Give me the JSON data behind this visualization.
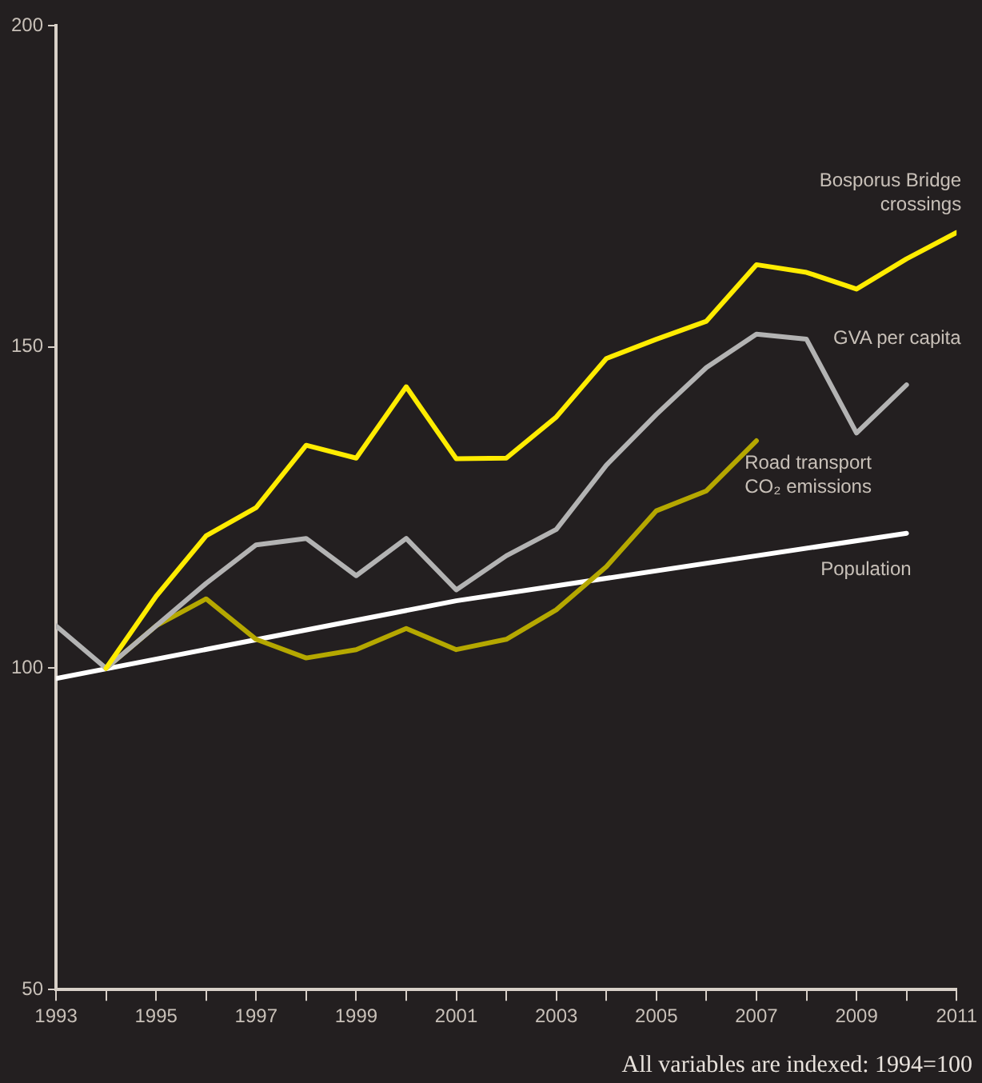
{
  "chart_data": {
    "type": "line",
    "series": [
      {
        "name": "Bosporus Bridge crossings",
        "color": "#ffec00",
        "x": [
          1994,
          1995,
          1996,
          1997,
          1998,
          1999,
          2000,
          2001,
          2002,
          2003,
          2004,
          2005,
          2006,
          2007,
          2008,
          2009,
          2010,
          2011
        ],
        "values": [
          100,
          111.2,
          120.6,
          125,
          134.7,
          132.7,
          143.8,
          132.6,
          132.7,
          139.1,
          148.2,
          151.2,
          154,
          162.8,
          161.6,
          159,
          163.7,
          167.8
        ]
      },
      {
        "name": "GVA per capita",
        "color": "#b3b3b3",
        "x": [
          1993,
          1994,
          1995,
          1996,
          1997,
          1998,
          1999,
          2000,
          2001,
          2002,
          2003,
          2004,
          2005,
          2006,
          2007,
          2008,
          2009,
          2010
        ],
        "values": [
          106.6,
          100,
          106.6,
          113.2,
          119.2,
          120.2,
          114.4,
          120.2,
          112.2,
          117.5,
          121.6,
          131.6,
          139.5,
          146.8,
          152,
          151.2,
          136.6,
          144.1
        ]
      },
      {
        "name": "Road transport CO₂ emissions",
        "color": "#b5a800",
        "x": [
          1994,
          1995,
          1996,
          1997,
          1998,
          1999,
          2000,
          2001,
          2002,
          2003,
          2004,
          2005,
          2006,
          2007
        ],
        "values": [
          100,
          106.6,
          110.8,
          104.5,
          101.6,
          102.9,
          106.2,
          102.9,
          104.5,
          109.1,
          115.8,
          124.5,
          127.6,
          135.4
        ]
      },
      {
        "name": "Population",
        "color": "#ffffff",
        "x": [
          1993,
          2001,
          2010
        ],
        "values": [
          98.4,
          110.5,
          121
        ]
      }
    ],
    "xlim": [
      1993,
      2011
    ],
    "xticks": [
      1993,
      {
        "value": 1994,
        "label": null
      },
      1995,
      {
        "value": 1996,
        "label": null
      },
      1997,
      {
        "value": 1998,
        "label": null
      },
      1999,
      {
        "value": 2000,
        "label": null
      },
      2001,
      {
        "value": 2002,
        "label": null
      },
      2003,
      {
        "value": 2004,
        "label": null
      },
      2005,
      {
        "value": 2006,
        "label": null
      },
      2007,
      {
        "value": 2008,
        "label": null
      },
      2009,
      {
        "value": 2010,
        "label": null
      },
      2011
    ],
    "ylim": [
      50,
      200
    ],
    "yticks": [
      50,
      100,
      150,
      200
    ],
    "grid": false,
    "legend": false,
    "marker": "none",
    "line_style": "solid",
    "annotations": [
      "All variables are indexed: 1994=100"
    ]
  }
}
